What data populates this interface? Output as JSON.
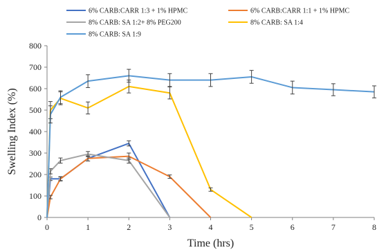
{
  "chart_data": {
    "type": "line",
    "title": "",
    "xlabel": "Time (hrs)",
    "ylabel": "Swelling Index (%)",
    "xlim": [
      0,
      8
    ],
    "ylim": [
      0,
      800
    ],
    "xticks": [
      0,
      1,
      2,
      3,
      4,
      5,
      6,
      7,
      8
    ],
    "yticks": [
      0,
      100,
      200,
      300,
      400,
      500,
      600,
      700,
      800
    ],
    "grid": false,
    "legend_position": "top",
    "series": [
      {
        "name": "6% CARB:CARR  1:3 + 1% HPMC",
        "color": "#4472C4",
        "x": [
          0,
          0.083,
          0.33,
          1,
          2,
          3
        ],
        "y": [
          0,
          180,
          180,
          275,
          345,
          0
        ],
        "err": [
          0,
          8,
          8,
          12,
          12,
          0
        ]
      },
      {
        "name": "6% CARB:CARR 1:1 + 1% HPMC",
        "color": "#ED7D31",
        "x": [
          0,
          0.083,
          0.33,
          1,
          2,
          3,
          4
        ],
        "y": [
          0,
          95,
          180,
          275,
          285,
          190,
          0
        ],
        "err": [
          0,
          8,
          10,
          12,
          15,
          8,
          0
        ]
      },
      {
        "name": "8% CARB: SA 1:2+ 8% PEG200",
        "color": "#A5A5A5",
        "x": [
          0,
          0.083,
          0.33,
          1,
          2,
          3
        ],
        "y": [
          0,
          215,
          265,
          295,
          265,
          0
        ],
        "err": [
          0,
          12,
          12,
          12,
          12,
          0
        ]
      },
      {
        "name": "8% CARB: SA 1:4",
        "color": "#FFC000",
        "x": [
          0,
          0.083,
          0.33,
          1,
          2,
          3,
          4,
          5
        ],
        "y": [
          0,
          500,
          555,
          510,
          610,
          580,
          130,
          0
        ],
        "err": [
          0,
          40,
          30,
          28,
          30,
          28,
          8,
          0
        ]
      },
      {
        "name": "8% CARB: SA 1:9",
        "color": "#5B9BD5",
        "x": [
          0,
          0.083,
          0.33,
          1,
          2,
          3,
          4,
          5,
          6,
          7,
          8
        ],
        "y": [
          0,
          480,
          560,
          635,
          660,
          640,
          640,
          655,
          605,
          595,
          585
        ],
        "err": [
          0,
          40,
          30,
          30,
          30,
          30,
          30,
          30,
          30,
          28,
          28
        ]
      }
    ]
  }
}
